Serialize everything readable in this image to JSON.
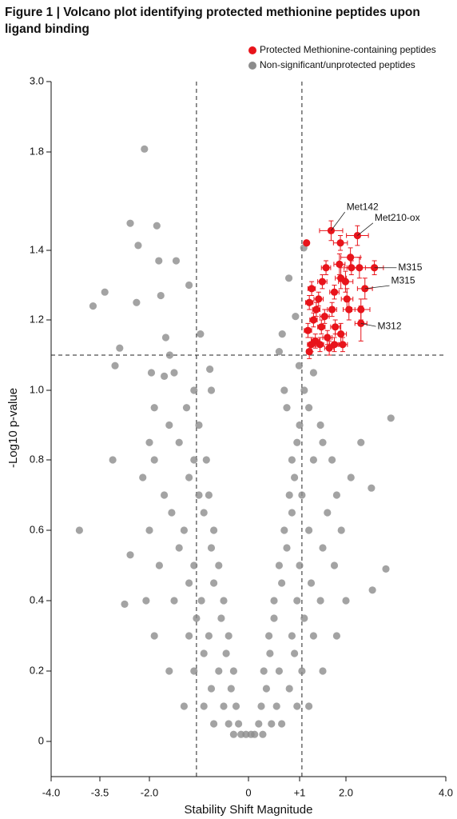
{
  "chart_data": {
    "type": "scatter",
    "title": "Figure 1 | Volcano plot identifying protected methionine peptides upon ligand binding",
    "x_label": "Stability Shift Magnitude",
    "y_label": "-Log10 p-value",
    "xlim": [
      -4,
      4
    ],
    "ylim": [
      -0.1,
      3
    ],
    "xticks": [
      {
        "value": -4,
        "label": "-4.0"
      },
      -3.5,
      {
        "value": -2,
        "label": "-2.0"
      },
      0,
      {
        "value": 1,
        "label": "+1"
      },
      {
        "value": 2,
        "label": "2.0"
      },
      {
        "value": 4,
        "label": "4.0"
      }
    ],
    "yticks": [
      0,
      0.2,
      0.4,
      0.6,
      0.8,
      {
        "value": 1,
        "label": "1.0"
      },
      1.2,
      1.4,
      1.8,
      {
        "value": 3,
        "label": "3.0"
      }
    ],
    "thresholds": {
      "x": [
        -1.05,
        1.05
      ],
      "y": 1.1
    },
    "legend": "top-right",
    "series": [
      {
        "name": "Non-significant/unprotected peptides",
        "color": "#8c8c8c",
        "x": [
          -2.15,
          -2.58,
          -1.85,
          -2.34,
          -1.81,
          -1.46,
          -3.35,
          -3.57,
          -2.39,
          -1.77,
          -1.2,
          -2.9,
          -3.04,
          -1.67,
          -1.59,
          -0.97,
          -0.78,
          -1.96,
          -1.7,
          1.09,
          0.79,
          0.92,
          0.66,
          0.6,
          0.99,
          2.9,
          -3.11,
          -3.71,
          2.51,
          -2.75,
          -2.58,
          2.8,
          2.53,
          2.3,
          -0.15,
          -0.05,
          0.05,
          0.12,
          -0.3,
          0.28,
          -0.4,
          -0.2,
          0.2,
          0.45,
          -0.7,
          0.65,
          -0.9,
          -0.5,
          -0.25,
          0.25,
          0.55,
          0.95,
          -1.3,
          1.2,
          -0.35,
          0.35,
          -0.75,
          0.8,
          -1.6,
          -1.1,
          -0.6,
          -0.3,
          0.3,
          0.6,
          1.05,
          1.5,
          -0.45,
          0.42,
          -0.9,
          0.9,
          -1.9,
          -1.2,
          -0.8,
          -0.4,
          0.4,
          0.85,
          1.3,
          1.8,
          -0.55,
          0.5,
          -1.05,
          1.1,
          -2.1,
          -1.5,
          -0.95,
          -0.5,
          0.5,
          0.95,
          1.45,
          2.0,
          -0.7,
          0.65,
          -1.2,
          1.25,
          -1.8,
          -1.1,
          -0.6,
          0.6,
          1.0,
          1.75,
          -0.75,
          0.75,
          -1.4,
          1.5,
          -2.0,
          -1.3,
          -0.7,
          0.7,
          1.2,
          1.9,
          -0.9,
          0.85,
          -1.55,
          1.6,
          -1.7,
          -1.0,
          -0.8,
          0.8,
          1.05,
          1.8,
          -1.2,
          0.9,
          -2.2,
          2.1,
          -1.9,
          -1.1,
          -0.85,
          0.85,
          1.3,
          1.7,
          -1.4,
          0.95,
          -2.0,
          1.5,
          -1.6,
          -1.0,
          1.0,
          1.45,
          -1.25,
          0.75,
          -1.9,
          1.2,
          -1.1,
          -0.75,
          0.7,
          1.1,
          -1.5,
          1.3
        ],
        "values": [
          1.85,
          1.51,
          1.5,
          1.42,
          1.37,
          1.37,
          1.28,
          1.24,
          1.25,
          1.27,
          1.3,
          1.12,
          1.07,
          1.15,
          1.1,
          1.16,
          1.06,
          1.05,
          1.04,
          1.41,
          1.32,
          1.21,
          1.16,
          1.11,
          1.07,
          0.92,
          0.8,
          0.6,
          0.72,
          0.39,
          0.53,
          0.49,
          0.43,
          0.85,
          0.02,
          0.02,
          0.02,
          0.02,
          0.02,
          0.02,
          0.05,
          0.05,
          0.05,
          0.05,
          0.05,
          0.05,
          0.1,
          0.1,
          0.1,
          0.1,
          0.1,
          0.1,
          0.1,
          0.1,
          0.15,
          0.15,
          0.15,
          0.15,
          0.2,
          0.2,
          0.2,
          0.2,
          0.2,
          0.2,
          0.2,
          0.2,
          0.25,
          0.25,
          0.25,
          0.25,
          0.3,
          0.3,
          0.3,
          0.3,
          0.3,
          0.3,
          0.3,
          0.3,
          0.35,
          0.35,
          0.35,
          0.35,
          0.4,
          0.4,
          0.4,
          0.4,
          0.4,
          0.4,
          0.4,
          0.4,
          0.45,
          0.45,
          0.45,
          0.45,
          0.5,
          0.5,
          0.5,
          0.5,
          0.5,
          0.5,
          0.55,
          0.55,
          0.55,
          0.55,
          0.6,
          0.6,
          0.6,
          0.6,
          0.6,
          0.6,
          0.65,
          0.65,
          0.65,
          0.65,
          0.7,
          0.7,
          0.7,
          0.7,
          0.7,
          0.7,
          0.75,
          0.75,
          0.75,
          0.75,
          0.8,
          0.8,
          0.8,
          0.8,
          0.8,
          0.8,
          0.85,
          0.85,
          0.85,
          0.85,
          0.9,
          0.9,
          0.9,
          0.9,
          0.95,
          0.95,
          0.95,
          0.95,
          1.0,
          1.0,
          1.0,
          1.0,
          1.05,
          1.05
        ]
      },
      {
        "name": "Protected Methionine-containing peptides",
        "color": "#e8141b",
        "x": [
          1.68,
          2.23,
          1.88,
          1.15,
          2.09,
          1.86,
          2.27,
          2.57,
          1.57,
          2.11,
          1.89,
          1.49,
          1.26,
          1.99,
          2.38,
          1.75,
          2.02,
          1.21,
          1.41,
          2.06,
          2.3,
          1.7,
          1.36,
          1.54,
          1.3,
          2.3,
          1.77,
          1.47,
          1.18,
          1.6,
          1.89,
          1.34,
          1.93,
          1.25,
          1.64,
          1.44,
          1.21,
          1.75
        ],
        "values": [
          1.48,
          1.46,
          1.43,
          1.43,
          1.38,
          1.36,
          1.35,
          1.35,
          1.35,
          1.35,
          1.32,
          1.31,
          1.29,
          1.31,
          1.29,
          1.28,
          1.26,
          1.25,
          1.26,
          1.23,
          1.23,
          1.23,
          1.23,
          1.21,
          1.2,
          1.19,
          1.18,
          1.18,
          1.17,
          1.15,
          1.16,
          1.14,
          1.13,
          1.13,
          1.12,
          1.13,
          1.11,
          1.13
        ],
        "xerr": [
          0.25,
          0.22,
          0.15,
          null,
          0.2,
          0.12,
          0.25,
          0.18,
          0.1,
          0.15,
          0.12,
          0.1,
          0.08,
          0.15,
          0.15,
          0.1,
          0.12,
          0.08,
          0.1,
          0.12,
          0.18,
          0.1,
          0.08,
          0.1,
          0.08,
          0.12,
          0.1,
          0.08,
          0.08,
          0.1,
          0.12,
          0.08,
          0.1,
          0.08,
          0.1,
          0.08,
          0.06,
          0.1
        ],
        "yerr": [
          0.04,
          0.04,
          0.03,
          null,
          0.03,
          0.03,
          0.03,
          0.02,
          0.02,
          0.02,
          0.03,
          0.02,
          0.02,
          0.03,
          0.03,
          0.02,
          0.03,
          0.02,
          0.02,
          0.03,
          0.03,
          0.02,
          0.02,
          0.02,
          0.02,
          0.05,
          0.02,
          0.02,
          0.02,
          0.02,
          0.03,
          0.02,
          0.02,
          0.02,
          0.02,
          0.02,
          0.02,
          0.02
        ],
        "point_labels": [
          "Met142",
          "Met210-ox",
          null,
          null,
          null,
          null,
          null,
          "M315",
          null,
          null,
          null,
          null,
          null,
          null,
          "M315",
          null,
          null,
          null,
          null,
          null,
          null,
          null,
          null,
          null,
          null,
          "M312",
          null,
          null,
          null,
          null,
          null,
          null,
          null,
          null,
          null,
          null,
          null,
          null
        ]
      }
    ]
  }
}
